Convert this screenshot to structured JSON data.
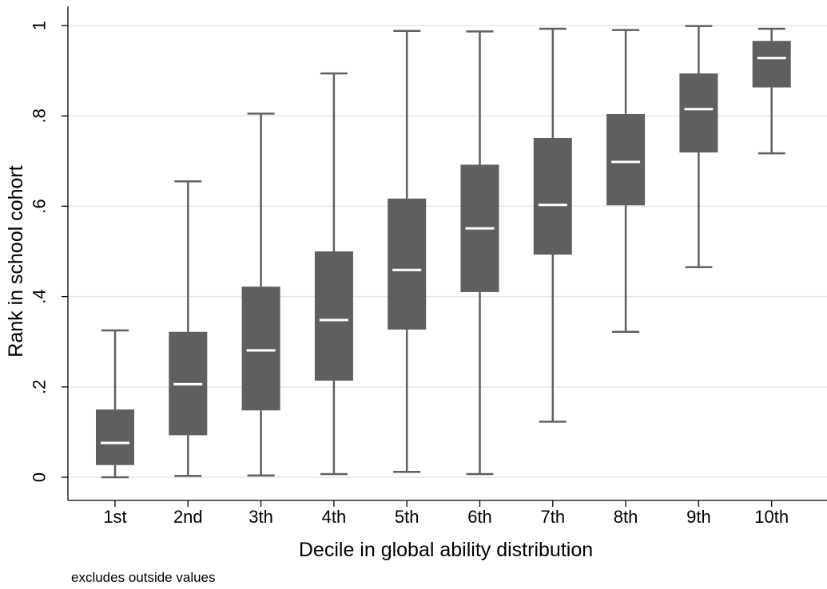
{
  "chart_data": {
    "type": "box",
    "ylabel": "Rank in school cohort",
    "xlabel": "Decile in global ability distribution",
    "note": "excludes outside values",
    "ylim": [
      0,
      1
    ],
    "yticks": [
      {
        "value": 0,
        "label": "0"
      },
      {
        "value": 0.2,
        "label": ".2"
      },
      {
        "value": 0.4,
        "label": ".4"
      },
      {
        "value": 0.6,
        "label": ".6"
      },
      {
        "value": 0.8,
        "label": ".8"
      },
      {
        "value": 1,
        "label": "1"
      }
    ],
    "grid": true,
    "box_color": "#5f5f5f",
    "whisker_color": "#5f5f5f",
    "median_color": "#ffffff",
    "grid_color": "#e6e6e6",
    "categories": [
      "1st",
      "2nd",
      "3th",
      "4th",
      "5th",
      "6th",
      "7th",
      "8th",
      "9th",
      "10th"
    ],
    "boxes": [
      {
        "min": 0.0,
        "q1": 0.027,
        "median": 0.076,
        "q3": 0.15,
        "max": 0.325
      },
      {
        "min": 0.003,
        "q1": 0.093,
        "median": 0.206,
        "q3": 0.322,
        "max": 0.655
      },
      {
        "min": 0.004,
        "q1": 0.148,
        "median": 0.281,
        "q3": 0.422,
        "max": 0.805
      },
      {
        "min": 0.007,
        "q1": 0.214,
        "median": 0.348,
        "q3": 0.5,
        "max": 0.894
      },
      {
        "min": 0.012,
        "q1": 0.327,
        "median": 0.459,
        "q3": 0.617,
        "max": 0.988
      },
      {
        "min": 0.007,
        "q1": 0.41,
        "median": 0.551,
        "q3": 0.692,
        "max": 0.987
      },
      {
        "min": 0.123,
        "q1": 0.493,
        "median": 0.603,
        "q3": 0.751,
        "max": 0.993
      },
      {
        "min": 0.322,
        "q1": 0.602,
        "median": 0.698,
        "q3": 0.804,
        "max": 0.99
      },
      {
        "min": 0.465,
        "q1": 0.719,
        "median": 0.815,
        "q3": 0.894,
        "max": 0.999
      },
      {
        "min": 0.717,
        "q1": 0.863,
        "median": 0.928,
        "q3": 0.966,
        "max": 0.993
      }
    ]
  }
}
